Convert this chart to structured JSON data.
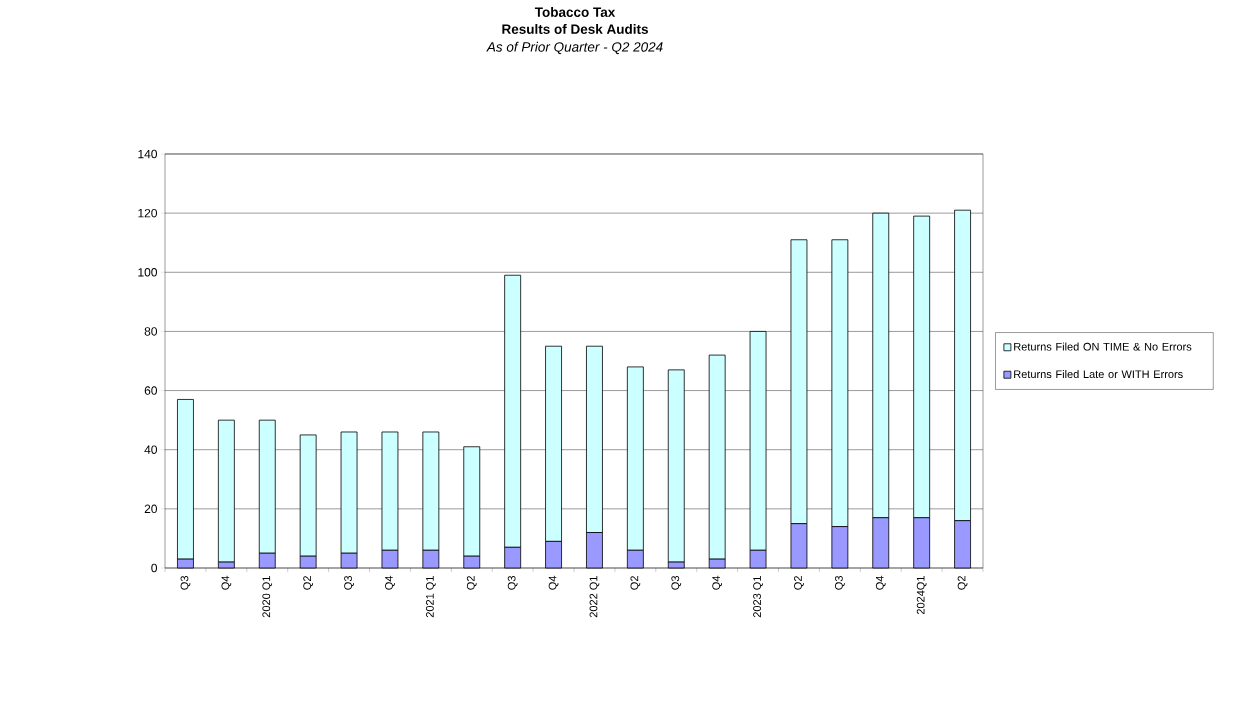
{
  "chart_data": {
    "type": "bar",
    "title": "Tobacco Tax",
    "subtitle": "Results of Desk Audits",
    "annotations": [
      "As of Prior Quarter - Q2 2024"
    ],
    "categories": [
      "Q3",
      "Q4",
      "2020 Q1",
      "Q2",
      "Q3",
      "Q4",
      "2021 Q1",
      "Q2",
      "Q3",
      "Q4",
      "2022 Q1",
      "Q2",
      "Q3",
      "Q4",
      "2023 Q1",
      "Q2",
      "Q3",
      "Q4",
      "2024Q1",
      "Q2"
    ],
    "series": [
      {
        "name": "Returns Filed Late or WITH Errors",
        "color": "#9999ff",
        "values": [
          3,
          2,
          5,
          4,
          5,
          6,
          6,
          4,
          7,
          9,
          12,
          6,
          2,
          3,
          6,
          15,
          14,
          17,
          17,
          16
        ]
      },
      {
        "name": "Returns Filed ON TIME & No Errors",
        "color": "#ccffff",
        "values": [
          54,
          48,
          45,
          41,
          41,
          40,
          40,
          37,
          92,
          66,
          63,
          62,
          65,
          69,
          74,
          96,
          97,
          103,
          102,
          105
        ]
      }
    ],
    "stacked": true,
    "ylim": [
      0,
      140
    ],
    "yticks": [
      0,
      20,
      40,
      60,
      80,
      100,
      120,
      140
    ],
    "grid": "y",
    "legend": "right"
  }
}
